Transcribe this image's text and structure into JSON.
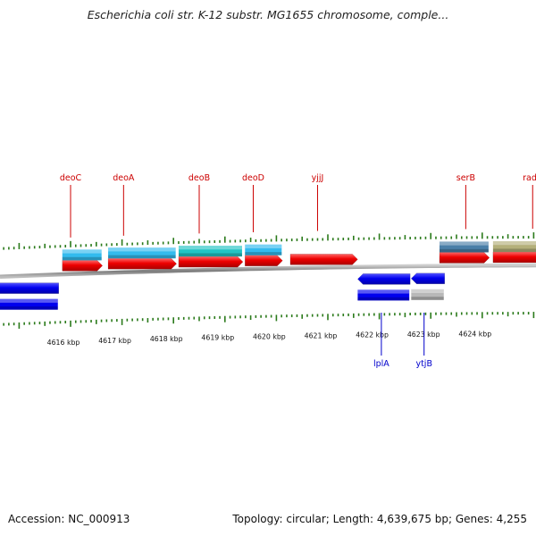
{
  "title": "Escherichia coli str. K-12 substr. MG1655 chromosome, comple...",
  "footer": {
    "accession": "Accession: NC_000913",
    "summary": "Topology: circular; Length: 4,639,675 bp; Genes: 4,255"
  },
  "colors": {
    "forward_label": "#cc0000",
    "reverse_label": "#0000cc",
    "tick": "#2a7a1a",
    "backbone": "#8a8a8a"
  },
  "kbp_axis": [
    {
      "label": "4616 kbp",
      "kbp": 4616
    },
    {
      "label": "4617 kbp",
      "kbp": 4617
    },
    {
      "label": "4618 kbp",
      "kbp": 4618
    },
    {
      "label": "4619 kbp",
      "kbp": 4619
    },
    {
      "label": "4620 kbp",
      "kbp": 4620
    },
    {
      "label": "4621 kbp",
      "kbp": 4621
    },
    {
      "label": "4622 kbp",
      "kbp": 4622
    },
    {
      "label": "4623 kbp",
      "kbp": 4623
    },
    {
      "label": "4624 kbp",
      "kbp": 4624
    }
  ],
  "genes": [
    {
      "name": "deoC",
      "strand": "forward",
      "start_kbp": 4615.84,
      "end_kbp": 4616.62,
      "label_kbp": 4616.0,
      "cds_color": "#33bbee"
    },
    {
      "name": "deoA",
      "strand": "forward",
      "start_kbp": 4616.73,
      "end_kbp": 4618.06,
      "label_kbp": 4617.03,
      "cds_color": "#33bbee"
    },
    {
      "name": "deoB",
      "strand": "forward",
      "start_kbp": 4618.1,
      "end_kbp": 4619.35,
      "label_kbp": 4618.5,
      "cds_color": "#22c4c4"
    },
    {
      "name": "deoD",
      "strand": "forward",
      "start_kbp": 4619.39,
      "end_kbp": 4620.12,
      "label_kbp": 4619.55,
      "cds_color": "#33bbee"
    },
    {
      "name": "yjjJ",
      "strand": "forward",
      "start_kbp": 4620.27,
      "end_kbp": 4621.58,
      "label_kbp": 4620.8,
      "cds_color": null
    },
    {
      "name": "serB",
      "strand": "forward",
      "start_kbp": 4623.17,
      "end_kbp": 4624.14,
      "label_kbp": 4623.68,
      "cds_color": "#4a7fa8"
    },
    {
      "name": "radA",
      "strand": "forward",
      "start_kbp": 4624.21,
      "end_kbp": 4626.0,
      "label_kbp": 4624.98,
      "cds_color": "#b4b07a"
    },
    {
      "name": "lplA",
      "strand": "reverse",
      "start_kbp": 4621.58,
      "end_kbp": 4622.6,
      "label_kbp": 4622.04,
      "cds_color": "#0000ee"
    },
    {
      "name": "ytjB",
      "strand": "reverse",
      "start_kbp": 4622.62,
      "end_kbp": 4623.27,
      "label_kbp": 4622.87,
      "cds_color": "#b8b8b8"
    },
    {
      "name": "",
      "strand": "reverse",
      "start_kbp": 4614.5,
      "end_kbp": 4615.77,
      "label_kbp": null,
      "cds_color": "#0000ee"
    }
  ]
}
